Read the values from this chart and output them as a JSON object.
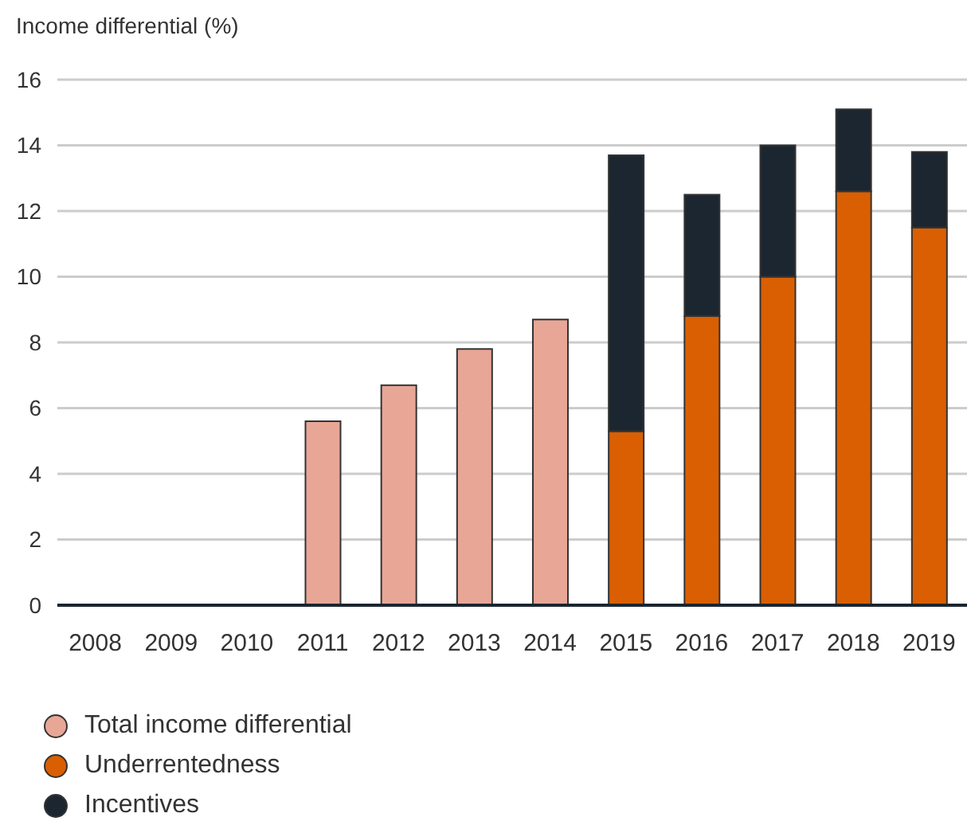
{
  "chart_data": {
    "type": "bar",
    "ylabel": "Income differential (%)",
    "categories": [
      "2008",
      "2009",
      "2010",
      "2011",
      "2012",
      "2013",
      "2014",
      "2015",
      "2016",
      "2017",
      "2018",
      "2019"
    ],
    "series": [
      {
        "name": "Total income differential",
        "color": "#e8a696",
        "values": [
          null,
          null,
          null,
          5.6,
          6.7,
          7.8,
          8.7,
          null,
          null,
          null,
          null,
          null
        ]
      },
      {
        "name": "Underrentedness",
        "color": "#d95f02",
        "values": [
          null,
          null,
          null,
          null,
          null,
          null,
          null,
          5.3,
          8.8,
          10.0,
          12.6,
          11.5
        ]
      },
      {
        "name": "Incentives",
        "color": "#1c2630",
        "values": [
          null,
          null,
          null,
          null,
          null,
          null,
          null,
          8.4,
          3.7,
          4.0,
          2.5,
          2.3
        ]
      }
    ],
    "stacked": true,
    "ylim": [
      0,
      16
    ],
    "yticks": [
      0,
      2,
      4,
      6,
      8,
      10,
      12,
      14,
      16
    ],
    "grid": "y",
    "legend": "bottom left"
  }
}
